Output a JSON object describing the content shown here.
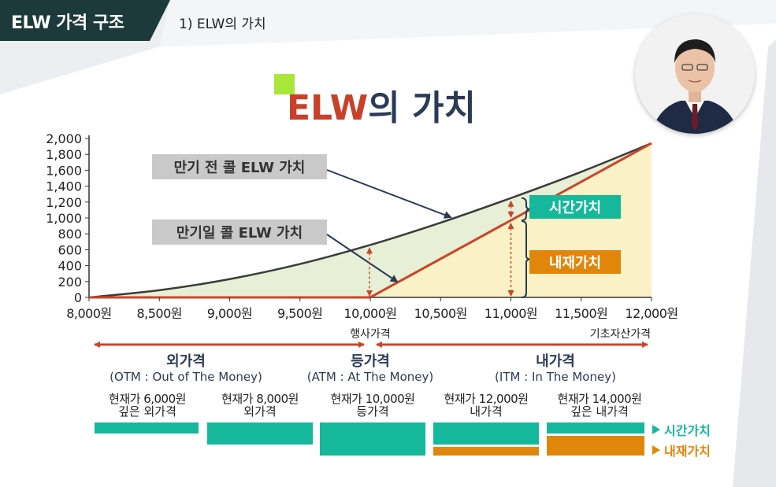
{
  "header": {
    "title": "ELW 가격 구조",
    "subtitle": "1) ELW의 가치"
  },
  "chart_data": {
    "type": "line",
    "title": "ELW의 가치",
    "x_ticks": [
      "8,000원",
      "8,500원",
      "9,000원",
      "9,500원",
      "10,000원",
      "10,500원",
      "11,000원",
      "11,500원",
      "12,000원"
    ],
    "x_tick_values": [
      8000,
      8500,
      9000,
      9500,
      10000,
      10500,
      11000,
      11500,
      12000
    ],
    "y_ticks": [
      "0",
      "200",
      "400",
      "600",
      "800",
      "1,000",
      "1,200",
      "1,400",
      "1,600",
      "1,800",
      "2,000"
    ],
    "y_tick_values": [
      0,
      200,
      400,
      600,
      800,
      1000,
      1200,
      1400,
      1600,
      1800,
      2000
    ],
    "xlim": [
      8000,
      12000
    ],
    "ylim": [
      0,
      2000
    ],
    "series": [
      {
        "name": "만기 전 콜 ELW 가치",
        "color": "#3b3b3b",
        "x": [
          8000,
          8500,
          9000,
          9500,
          10000,
          10500,
          11000,
          11500,
          12000
        ],
        "y": [
          0,
          90,
          230,
          420,
          660,
          940,
          1250,
          1580,
          1940
        ]
      },
      {
        "name": "만기일 콜 ELW 가치",
        "color": "#c8462a",
        "x": [
          8000,
          10000,
          12000
        ],
        "y": [
          0,
          0,
          1940
        ]
      }
    ],
    "strike": 10000,
    "labels": {
      "before_expiry": "만기 전 콜 ELW 가치",
      "at_expiry": "만기일 콜 ELW 가치",
      "time_value": "시간가치",
      "intrinsic_value": "내재가치",
      "strike_label": "행사가격",
      "underlying_label": "기초자산가격"
    },
    "colors": {
      "time": "#15b89a",
      "intrinsic": "#e0870b",
      "fill_time": "#e7efd6",
      "fill_intrinsic": "#fbf1c6"
    }
  },
  "sections": {
    "otm": {
      "title": "외가격",
      "sub": "(OTM : Out of The Money)"
    },
    "atm": {
      "title": "등가격",
      "sub": "(ATM : At  The Money)"
    },
    "itm": {
      "title": "내가격",
      "sub": "(ITM : In  The Money)"
    }
  },
  "columns": [
    {
      "line1": "현재가 6,000원",
      "line2": "깊은 외가격",
      "time": 1,
      "intrinsic": 0
    },
    {
      "line1": "현재가 8,000원",
      "line2": "외가격",
      "time": 2,
      "intrinsic": 0
    },
    {
      "line1": "현재가 10,000원",
      "line2": "등가격",
      "time": 3,
      "intrinsic": 0
    },
    {
      "line1": "현재가 12,000원",
      "line2": "내가격",
      "time": 2,
      "intrinsic": 1
    },
    {
      "line1": "현재가 14,000원",
      "line2": "깊은 내가격",
      "time": 1,
      "intrinsic": 2
    }
  ],
  "legend": {
    "time": "시간가치",
    "intrinsic": "내재가치"
  }
}
